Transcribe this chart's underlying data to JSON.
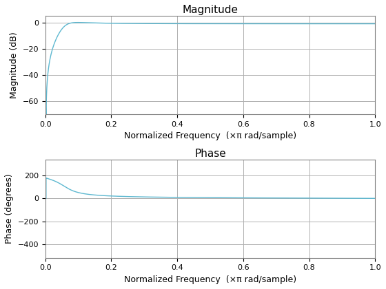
{
  "title_magnitude": "Magnitude",
  "title_phase": "Phase",
  "xlabel": "Normalized Frequency  (×π rad/sample)",
  "ylabel_magnitude": "Magnitude (dB)",
  "ylabel_phase": "Phase (degrees)",
  "line_color": "#5db8d0",
  "mag_ylim": [
    -70,
    5
  ],
  "mag_yticks": [
    0,
    -20,
    -40,
    -60
  ],
  "phase_ylim": [
    -520,
    340
  ],
  "phase_yticks": [
    200,
    0,
    -200,
    -400
  ],
  "xlim": [
    0,
    1
  ],
  "xticks": [
    0,
    0.2,
    0.4,
    0.6,
    0.8,
    1.0
  ],
  "background_color": "#ffffff",
  "grid_color": "#b0b0b0",
  "figsize": [
    5.6,
    4.2
  ],
  "dpi": 100
}
